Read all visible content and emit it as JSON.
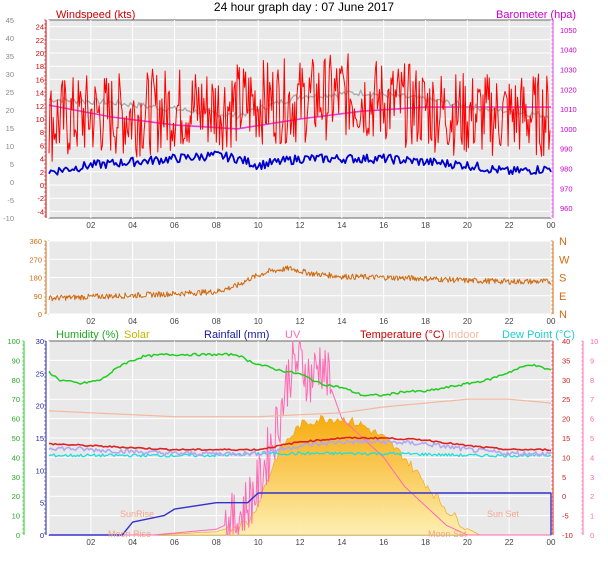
{
  "title": "24 hour graph day : 07 June 2017",
  "chart_data": [
    {
      "type": "line",
      "panel": "wind-pressure",
      "series_labels": {
        "wind": "Windspeed (kts)",
        "pressure": "Barometer (hpa)"
      },
      "left_axis": {
        "ylim": [
          -5,
          25
        ],
        "ticks": [
          -4,
          -2,
          0,
          2,
          4,
          6,
          8,
          10,
          12,
          14,
          16,
          18,
          20,
          22,
          24
        ]
      },
      "outer_left_axis": {
        "ylim": [
          -10,
          45
        ],
        "ticks": [
          -10,
          -5,
          0,
          5,
          10,
          15,
          20,
          25,
          30,
          35,
          40,
          45
        ]
      },
      "right_axis": {
        "ylim": [
          955,
          1055
        ],
        "ticks": [
          960,
          970,
          980,
          990,
          1000,
          1010,
          1020,
          1030,
          1040,
          1050
        ]
      },
      "x_ticks": [
        "02",
        "04",
        "06",
        "08",
        "10",
        "12",
        "14",
        "16",
        "18",
        "20",
        "22",
        "00"
      ],
      "barometer": {
        "x": [
          0,
          3,
          6,
          9,
          12,
          15,
          18,
          21,
          24
        ],
        "y": [
          1012,
          1006,
          1002,
          1000,
          1005,
          1009,
          1011,
          1011,
          1011
        ]
      },
      "wind_avg": {
        "x": [
          0,
          2,
          4,
          6,
          8,
          9,
          10,
          12,
          14,
          16,
          18,
          20,
          22,
          24
        ],
        "y": [
          2,
          3,
          3.5,
          4,
          4.5,
          4,
          3,
          4,
          4,
          4,
          3.5,
          3,
          2,
          2.5
        ]
      },
      "wind_gust": {
        "x": [
          0,
          2,
          4,
          6,
          8,
          10,
          12,
          14,
          16,
          18,
          20,
          22,
          24
        ],
        "y": [
          9,
          10,
          10,
          11,
          11,
          12,
          12,
          13,
          12,
          11,
          10,
          10,
          10
        ]
      },
      "grid": true
    },
    {
      "type": "line",
      "panel": "wind-direction",
      "left_axis": {
        "ylim": [
          0,
          360
        ],
        "ticks": [
          0,
          90,
          180,
          270,
          360
        ]
      },
      "compass": [
        "N",
        "W",
        "S",
        "E",
        "N"
      ],
      "x_ticks": [
        "02",
        "04",
        "06",
        "08",
        "10",
        "12",
        "14",
        "16",
        "18",
        "20",
        "22",
        "00"
      ],
      "direction": {
        "x": [
          0,
          2,
          4,
          6,
          8,
          9,
          9.6,
          10.5,
          11.5,
          12.5,
          14,
          16,
          18,
          20,
          22,
          24
        ],
        "y": [
          78,
          85,
          92,
          100,
          110,
          140,
          175,
          210,
          225,
          200,
          185,
          180,
          175,
          165,
          160,
          160
        ]
      },
      "grid": true
    },
    {
      "type": "line",
      "panel": "temperature-humidity-rain-solar",
      "series_labels": {
        "humidity": "Humidity (%)",
        "solar": "Solar",
        "rain": "Rainfall (mm)",
        "uv": "UV",
        "temp": "Temperature (°C)",
        "indoor": "Indoor",
        "dew": "Dew Point (°C)"
      },
      "humidity_axis": {
        "ylim": [
          0,
          100
        ],
        "ticks": [
          0,
          10,
          20,
          30,
          40,
          50,
          60,
          70,
          80,
          90,
          100
        ]
      },
      "rain_axis": {
        "ylim": [
          0,
          30
        ],
        "ticks": [
          0,
          5,
          10,
          15,
          20,
          25,
          30
        ]
      },
      "temp_axis": {
        "ylim": [
          -10,
          40
        ],
        "ticks": [
          -10,
          -5,
          0,
          5,
          10,
          15,
          20,
          25,
          30,
          35,
          40
        ]
      },
      "uv_axis": {
        "ylim": [
          0,
          10
        ],
        "ticks": [
          0,
          1,
          2,
          3,
          4,
          5,
          6,
          7,
          8,
          9,
          10
        ]
      },
      "x_ticks": [
        "02",
        "04",
        "06",
        "08",
        "10",
        "12",
        "14",
        "16",
        "18",
        "20",
        "22",
        "00"
      ],
      "humidity": {
        "x": [
          0,
          0.5,
          1.5,
          2.5,
          3.5,
          4.5,
          5.5,
          6.5,
          7.5,
          8.5,
          9,
          9.5,
          10,
          11,
          12,
          13,
          14,
          15,
          16,
          17,
          18,
          19,
          20,
          21,
          22,
          23,
          24
        ],
        "y": [
          84,
          80,
          78,
          80,
          88,
          92,
          93,
          93,
          93,
          93,
          93,
          90,
          88,
          85,
          83,
          78,
          76,
          72,
          72,
          74,
          74,
          76,
          78,
          80,
          84,
          88,
          85
        ]
      },
      "indoor": {
        "x": [
          0,
          2,
          4,
          6,
          8,
          10,
          12,
          14,
          16,
          18,
          20,
          22,
          24
        ],
        "y": [
          22,
          21.5,
          21,
          20.5,
          20.5,
          20.5,
          21,
          21.5,
          23,
          24,
          25,
          25,
          24
        ]
      },
      "temperature": {
        "x": [
          0,
          2,
          4,
          6,
          8,
          10,
          12,
          14,
          16,
          18,
          20,
          22,
          24
        ],
        "y": [
          13.5,
          13,
          12.5,
          12,
          12,
          12,
          14,
          15,
          15,
          14.5,
          13,
          12,
          12
        ]
      },
      "dew_point": {
        "x": [
          0,
          2,
          4,
          6,
          8,
          10,
          12,
          14,
          16,
          18,
          20,
          22,
          24
        ],
        "y": [
          10.5,
          10.5,
          10.5,
          10.5,
          10.5,
          11,
          11,
          11,
          11,
          10.8,
          10.5,
          10.5,
          10.5
        ]
      },
      "rainfall": {
        "x": [
          0,
          3.5,
          4,
          5.5,
          6,
          8,
          9.5,
          10,
          24
        ],
        "y": [
          0,
          0,
          2,
          3,
          4,
          5,
          5,
          6.5,
          6.5
        ]
      },
      "solar": {
        "x": [
          0,
          5,
          8,
          9.5,
          10,
          11,
          12,
          13,
          14,
          15,
          16,
          17,
          18,
          19,
          20,
          20.6,
          24
        ],
        "y": [
          0,
          0,
          0.5,
          2,
          5,
          13,
          17,
          18,
          18,
          17,
          15,
          12,
          8,
          4,
          1,
          0,
          0
        ]
      },
      "uv": {
        "x": [
          0,
          5,
          8,
          9,
          10,
          11,
          11.5,
          12,
          12.5,
          13,
          14,
          15,
          16,
          17,
          18,
          19,
          20,
          20.6,
          24
        ],
        "y": [
          0,
          0,
          0.3,
          0.8,
          2.5,
          6,
          8.5,
          9,
          8,
          9,
          6,
          5,
          4,
          2.5,
          1.5,
          0.5,
          0,
          0,
          0
        ]
      },
      "annotations": [
        "SunRise",
        "Moon Rise",
        "Moon Set",
        "Sun Set"
      ],
      "grid": true
    }
  ]
}
